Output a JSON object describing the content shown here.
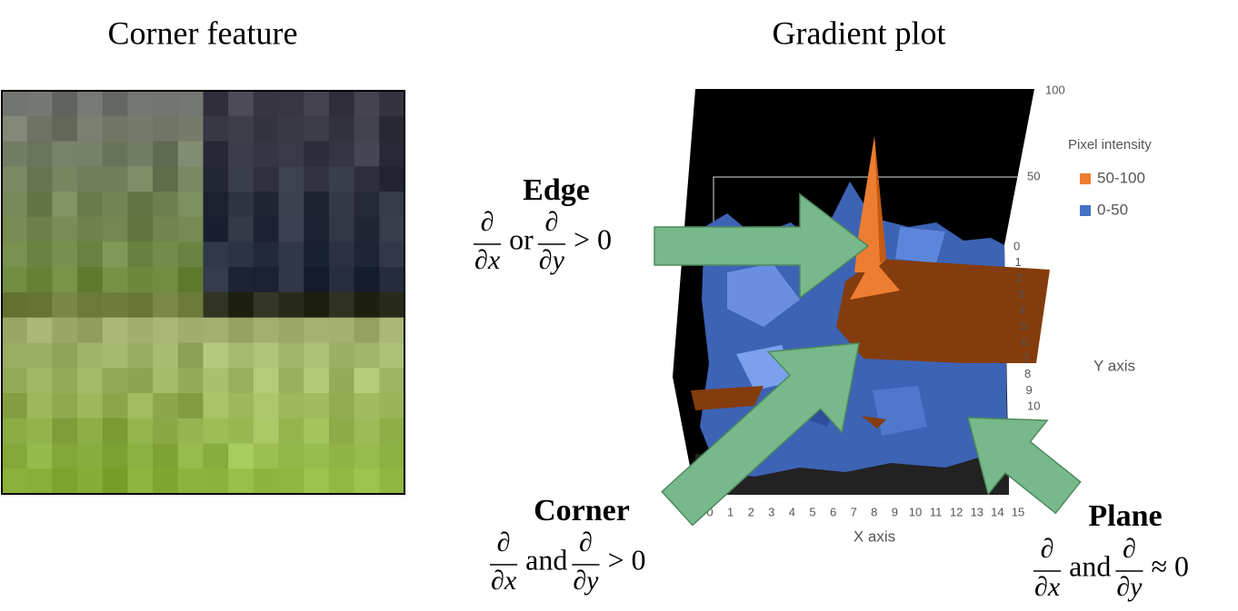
{
  "left": {
    "title": "Corner feature"
  },
  "right": {
    "title": "Gradient plot",
    "z_ticks": [
      100,
      50
    ],
    "y_ticks": [
      0,
      1,
      2,
      3,
      4,
      5,
      6,
      7,
      8,
      9,
      10
    ],
    "x_ticks": [
      0,
      1,
      2,
      3,
      4,
      5,
      6,
      7,
      8,
      9,
      10,
      11,
      12,
      13,
      14,
      15
    ],
    "x_label": "X axis",
    "y_label": "Y axis",
    "legend": {
      "title": "Pixel intensity",
      "entries": [
        {
          "label": "50-100",
          "color": "#ed7d31"
        },
        {
          "label": "0-50",
          "color": "#4472c4"
        }
      ]
    }
  },
  "edge": {
    "label": "Edge",
    "formula": [
      {
        "num": "∂",
        "den": "∂x"
      },
      "or",
      {
        "num": "∂",
        "den": "∂y"
      },
      "> 0"
    ]
  },
  "corner": {
    "label": "Corner",
    "formula": [
      {
        "num": "∂",
        "den": "∂x"
      },
      "and",
      {
        "num": "∂",
        "den": "∂y"
      },
      "> 0"
    ]
  },
  "plane": {
    "label": "Plane",
    "formula": [
      {
        "num": "∂",
        "den": "∂x"
      },
      "and",
      {
        "num": "∂",
        "den": "∂y"
      },
      "≈ 0"
    ]
  }
}
